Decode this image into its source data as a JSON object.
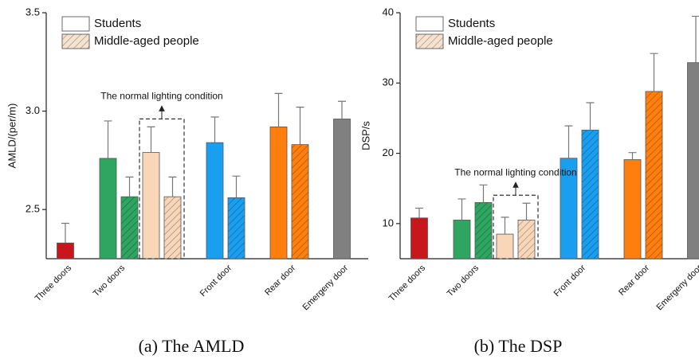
{
  "chart_data": [
    {
      "type": "bar",
      "y_label": "AMLD/(per/m)",
      "caption": "(a) The AMLD",
      "annotation": "The normal lighting condition",
      "categories": [
        "Three doors",
        "Two doors",
        null,
        "Front door",
        "Rear door",
        "Emergeny door"
      ],
      "ylim": [
        2.25,
        3.5
      ],
      "yticks": [
        2.5,
        {
          "value": 3,
          "label": "3.0"
        },
        3.5
      ],
      "series": [
        {
          "name": "Students",
          "hatch": false,
          "legend_color": "#ffffff",
          "colors": [
            "#c8161d",
            "#2fa562",
            "#f9d6b8",
            "#1a9ff0",
            "#ff7f0e",
            "#808080"
          ],
          "values": [
            2.33,
            2.76,
            2.79,
            2.84,
            2.92,
            2.96
          ],
          "errors": [
            0.1,
            0.19,
            0.13,
            0.13,
            0.17,
            0.09
          ]
        },
        {
          "name": "Middle-aged people",
          "hatch": true,
          "legend_color": "#f5e3cf",
          "colors": [
            null,
            "#2fa562",
            "#f9d6b8",
            "#1a9ff0",
            "#ff7f0e",
            null
          ],
          "values": [
            null,
            2.565,
            2.565,
            2.56,
            2.83,
            null
          ],
          "errors": [
            null,
            0.1,
            0.1,
            0.11,
            0.19,
            null
          ]
        }
      ]
    },
    {
      "type": "bar",
      "y_label": "DSP/s",
      "caption": "(b) The DSP",
      "annotation": "The normal lighting condition",
      "categories": [
        "Three doors",
        "Two doors",
        null,
        "Front door",
        "Rear door",
        "Emergeny door"
      ],
      "ylim": [
        5,
        40
      ],
      "yticks": [
        10,
        20,
        30,
        40
      ],
      "series": [
        {
          "name": "Students",
          "hatch": false,
          "legend_color": "#ffffff",
          "colors": [
            "#c8161d",
            "#2fa562",
            "#f9d6b8",
            "#1a9ff0",
            "#ff7f0e",
            "#808080"
          ],
          "values": [
            10.8,
            10.5,
            8.5,
            19.3,
            19.1,
            32.9
          ],
          "errors": [
            1.4,
            3.0,
            2.4,
            4.6,
            1.0,
            6.6
          ]
        },
        {
          "name": "Middle-aged people",
          "hatch": true,
          "legend_color": "#f5e3cf",
          "colors": [
            null,
            "#2fa562",
            "#f9d6b8",
            "#1a9ff0",
            "#ff7f0e",
            null
          ],
          "values": [
            null,
            13.0,
            10.5,
            23.3,
            28.8,
            null
          ],
          "errors": [
            null,
            2.5,
            2.4,
            3.9,
            5.4,
            null
          ]
        }
      ]
    }
  ]
}
